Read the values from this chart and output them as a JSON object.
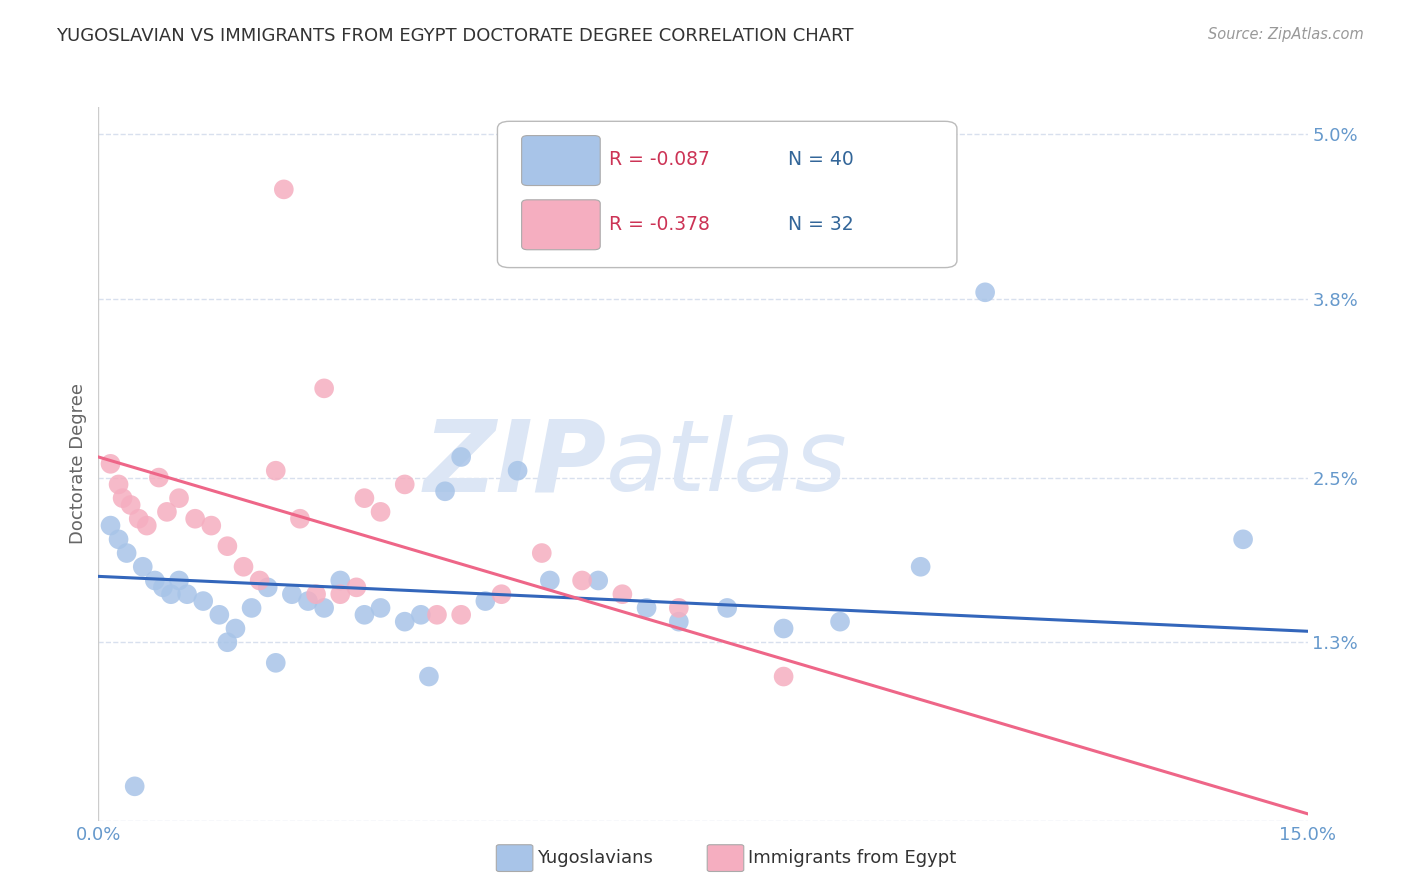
{
  "title": "YUGOSLAVIAN VS IMMIGRANTS FROM EGYPT DOCTORATE DEGREE CORRELATION CHART",
  "source": "Source: ZipAtlas.com",
  "ylabel": "Doctorate Degree",
  "xlim": [
    0.0,
    15.0
  ],
  "ylim": [
    0.0,
    5.2
  ],
  "yticks": [
    0.0,
    1.3,
    2.5,
    3.8,
    5.0
  ],
  "ytick_labels": [
    "",
    "1.3%",
    "2.5%",
    "3.8%",
    "5.0%"
  ],
  "xticks": [
    0.0,
    3.75,
    7.5,
    11.25,
    15.0
  ],
  "xtick_labels": [
    "0.0%",
    "",
    "",
    "",
    "15.0%"
  ],
  "legend_blue_r": "R = -0.087",
  "legend_blue_n": "N = 40",
  "legend_pink_r": "R = -0.378",
  "legend_pink_n": "N = 32",
  "legend_label_blue": "Yugoslavians",
  "legend_label_pink": "Immigrants from Egypt",
  "blue_color": "#a8c4e8",
  "pink_color": "#f5aec0",
  "line_blue_color": "#3366bb",
  "line_pink_color": "#ee6688",
  "watermark_zip": "ZIP",
  "watermark_atlas": "atlas",
  "blue_scatter_x": [
    0.15,
    0.25,
    0.35,
    0.55,
    0.7,
    0.8,
    0.9,
    1.0,
    1.1,
    1.3,
    1.5,
    1.7,
    1.9,
    2.1,
    2.4,
    2.6,
    2.8,
    3.0,
    3.3,
    3.5,
    3.8,
    4.0,
    4.3,
    4.5,
    4.8,
    5.2,
    5.6,
    6.2,
    6.8,
    7.2,
    7.8,
    8.5,
    9.2,
    10.2,
    11.0,
    0.45,
    1.6,
    2.2,
    4.1,
    14.2
  ],
  "blue_scatter_y": [
    2.15,
    2.05,
    1.95,
    1.85,
    1.75,
    1.7,
    1.65,
    1.75,
    1.65,
    1.6,
    1.5,
    1.4,
    1.55,
    1.7,
    1.65,
    1.6,
    1.55,
    1.75,
    1.5,
    1.55,
    1.45,
    1.5,
    2.4,
    2.65,
    1.6,
    2.55,
    1.75,
    1.75,
    1.55,
    1.45,
    1.55,
    1.4,
    1.45,
    1.85,
    3.85,
    0.25,
    1.3,
    1.15,
    1.05,
    2.05
  ],
  "pink_scatter_x": [
    0.15,
    0.25,
    0.3,
    0.4,
    0.5,
    0.6,
    0.75,
    0.85,
    1.0,
    1.2,
    1.4,
    1.6,
    1.8,
    2.0,
    2.2,
    2.5,
    2.7,
    3.0,
    3.2,
    3.5,
    3.8,
    4.2,
    4.5,
    5.0,
    5.5,
    6.0,
    6.5,
    7.2,
    8.5,
    2.8,
    2.3,
    3.3
  ],
  "pink_scatter_y": [
    2.6,
    2.45,
    2.35,
    2.3,
    2.2,
    2.15,
    2.5,
    2.25,
    2.35,
    2.2,
    2.15,
    2.0,
    1.85,
    1.75,
    2.55,
    2.2,
    1.65,
    1.65,
    1.7,
    2.25,
    2.45,
    1.5,
    1.5,
    1.65,
    1.95,
    1.75,
    1.65,
    1.55,
    1.05,
    3.15,
    4.6,
    2.35
  ],
  "blue_line_x": [
    0.0,
    15.0
  ],
  "blue_line_y": [
    1.78,
    1.38
  ],
  "pink_line_x": [
    0.0,
    15.0
  ],
  "pink_line_y": [
    2.65,
    0.05
  ],
  "grid_color": "#d8e0ee",
  "background_color": "#ffffff",
  "title_color": "#333333",
  "axis_label_color": "#666666",
  "tick_label_color": "#6699cc",
  "source_color": "#999999",
  "legend_r_color": "#cc3355",
  "legend_n_color": "#336699"
}
